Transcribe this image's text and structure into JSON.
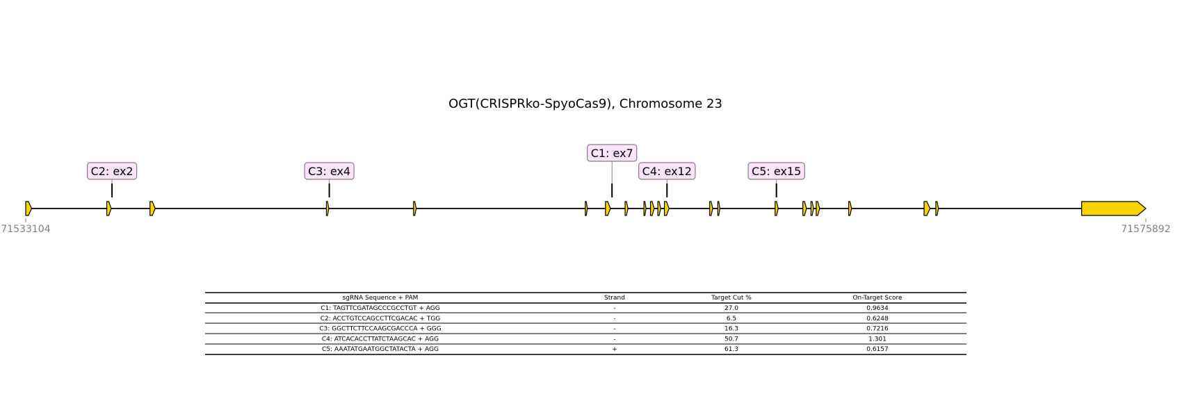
{
  "title": "OGT(CRISPRko-SpyoCas9), Chromosome 23",
  "coords": {
    "start": 71533104,
    "end": 71575892,
    "start_label": "71533104",
    "end_label": "71575892"
  },
  "colors": {
    "exon_fill": "#f9d500",
    "label_fill": "#fbe3fa",
    "label_stroke": "#8a7a8a",
    "axis": "#000000",
    "coord_text": "#808080"
  },
  "exons": [
    {
      "start": 71533104,
      "end": 71533330
    },
    {
      "start": 71536200,
      "end": 71536370
    },
    {
      "start": 71537850,
      "end": 71538050
    },
    {
      "start": 71544590,
      "end": 71544680
    },
    {
      "start": 71547920,
      "end": 71548020
    },
    {
      "start": 71554480,
      "end": 71554560
    },
    {
      "start": 71555250,
      "end": 71555440
    },
    {
      "start": 71556000,
      "end": 71556110
    },
    {
      "start": 71556720,
      "end": 71556790
    },
    {
      "start": 71556970,
      "end": 71557110
    },
    {
      "start": 71557250,
      "end": 71557360
    },
    {
      "start": 71557500,
      "end": 71557680
    },
    {
      "start": 71559230,
      "end": 71559350
    },
    {
      "start": 71559540,
      "end": 71559620
    },
    {
      "start": 71561730,
      "end": 71561850
    },
    {
      "start": 71562790,
      "end": 71562930
    },
    {
      "start": 71563100,
      "end": 71563200
    },
    {
      "start": 71563300,
      "end": 71563430
    },
    {
      "start": 71564540,
      "end": 71564650
    },
    {
      "start": 71567420,
      "end": 71567650
    },
    {
      "start": 71567870,
      "end": 71567970
    },
    {
      "start": 71573440,
      "end": 71575892
    }
  ],
  "guides": [
    {
      "label": "C2: ex2",
      "pos": 71536400,
      "tier": 1
    },
    {
      "label": "C3: ex4",
      "pos": 71544700,
      "tier": 1
    },
    {
      "label": "C1: ex7",
      "pos": 71555500,
      "tier": 2
    },
    {
      "label": "C4: ex12",
      "pos": 71557600,
      "tier": 1
    },
    {
      "label": "C5: ex15",
      "pos": 71561780,
      "tier": 1
    }
  ],
  "table": {
    "headers": [
      "sgRNA Sequence + PAM",
      "Strand",
      "Target Cut %",
      "On-Target Score"
    ],
    "rows": [
      [
        "C1: TAGTTCGATAGCCCGCCTGT + AGG",
        "-",
        "27.0",
        "0.9634"
      ],
      [
        "C2: ACCTGTCCAGCCTTCGACAC + TGG",
        "-",
        "6.5",
        "0.6248"
      ],
      [
        "C3: GGCTTCTTCCAAGCGACCCA + GGG",
        "-",
        "16.3",
        "0.7216"
      ],
      [
        "C4: ATCACACCTTATCTAAGCAC + AGG",
        "-",
        "50.7",
        "1.301"
      ],
      [
        "C5: AAATATGAATGGCTATACTA + AGG",
        "+",
        "61.3",
        "0.6157"
      ]
    ]
  }
}
